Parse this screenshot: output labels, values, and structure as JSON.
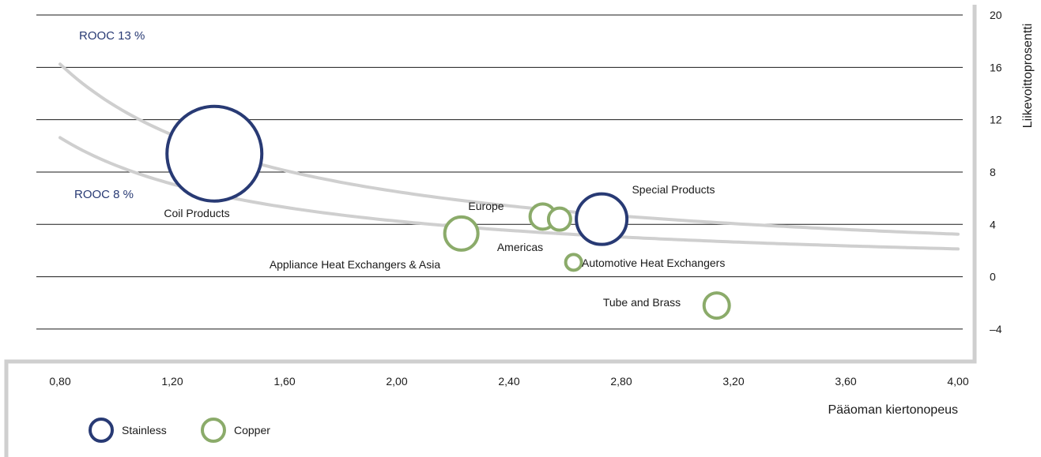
{
  "chart_data": {
    "type": "scatter",
    "title": "",
    "xlabel": "Pääoman kiertonopeus",
    "ylabel": "Liikevoittoprosentti",
    "xlim": [
      0.8,
      4.0
    ],
    "ylim": [
      -4,
      20
    ],
    "x_ticks": [
      "0,80",
      "1,20",
      "1,60",
      "2,00",
      "2,40",
      "2,80",
      "3,20",
      "3,60",
      "4,00"
    ],
    "y_ticks": [
      "20",
      "16",
      "12",
      "8",
      "4",
      "0",
      "–4"
    ],
    "grid": true,
    "legend_position": "bottom-left",
    "colors": {
      "stainless": "#283a74",
      "copper": "#8bab6a",
      "curve": "#cfcfcf",
      "grid": "#1a1a1a"
    },
    "series": [
      {
        "name": "Stainless",
        "color": "#283a74",
        "points": [
          {
            "label": "Coil Products",
            "x": 1.35,
            "y": 9.4,
            "r": 60
          },
          {
            "label": "Special Products",
            "x": 2.73,
            "y": 4.4,
            "r": 32
          }
        ]
      },
      {
        "name": "Copper",
        "color": "#8bab6a",
        "points": [
          {
            "label": "Europe",
            "x": 2.52,
            "y": 4.6,
            "r": 16
          },
          {
            "label": "Americas",
            "x": 2.58,
            "y": 4.4,
            "r": 14
          },
          {
            "label": "Appliance Heat Exchangers & Asia",
            "x": 2.23,
            "y": 3.3,
            "r": 21
          },
          {
            "label": "Automotive Heat Exchangers",
            "x": 2.63,
            "y": 1.1,
            "r": 10
          },
          {
            "label": "Tube and Brass",
            "x": 3.14,
            "y": -2.2,
            "r": 16
          }
        ]
      }
    ],
    "curves": [
      {
        "name": "ROOC 13 %",
        "k": 13.0
      },
      {
        "name": "ROOC 8 %",
        "k": 8.5
      }
    ]
  }
}
